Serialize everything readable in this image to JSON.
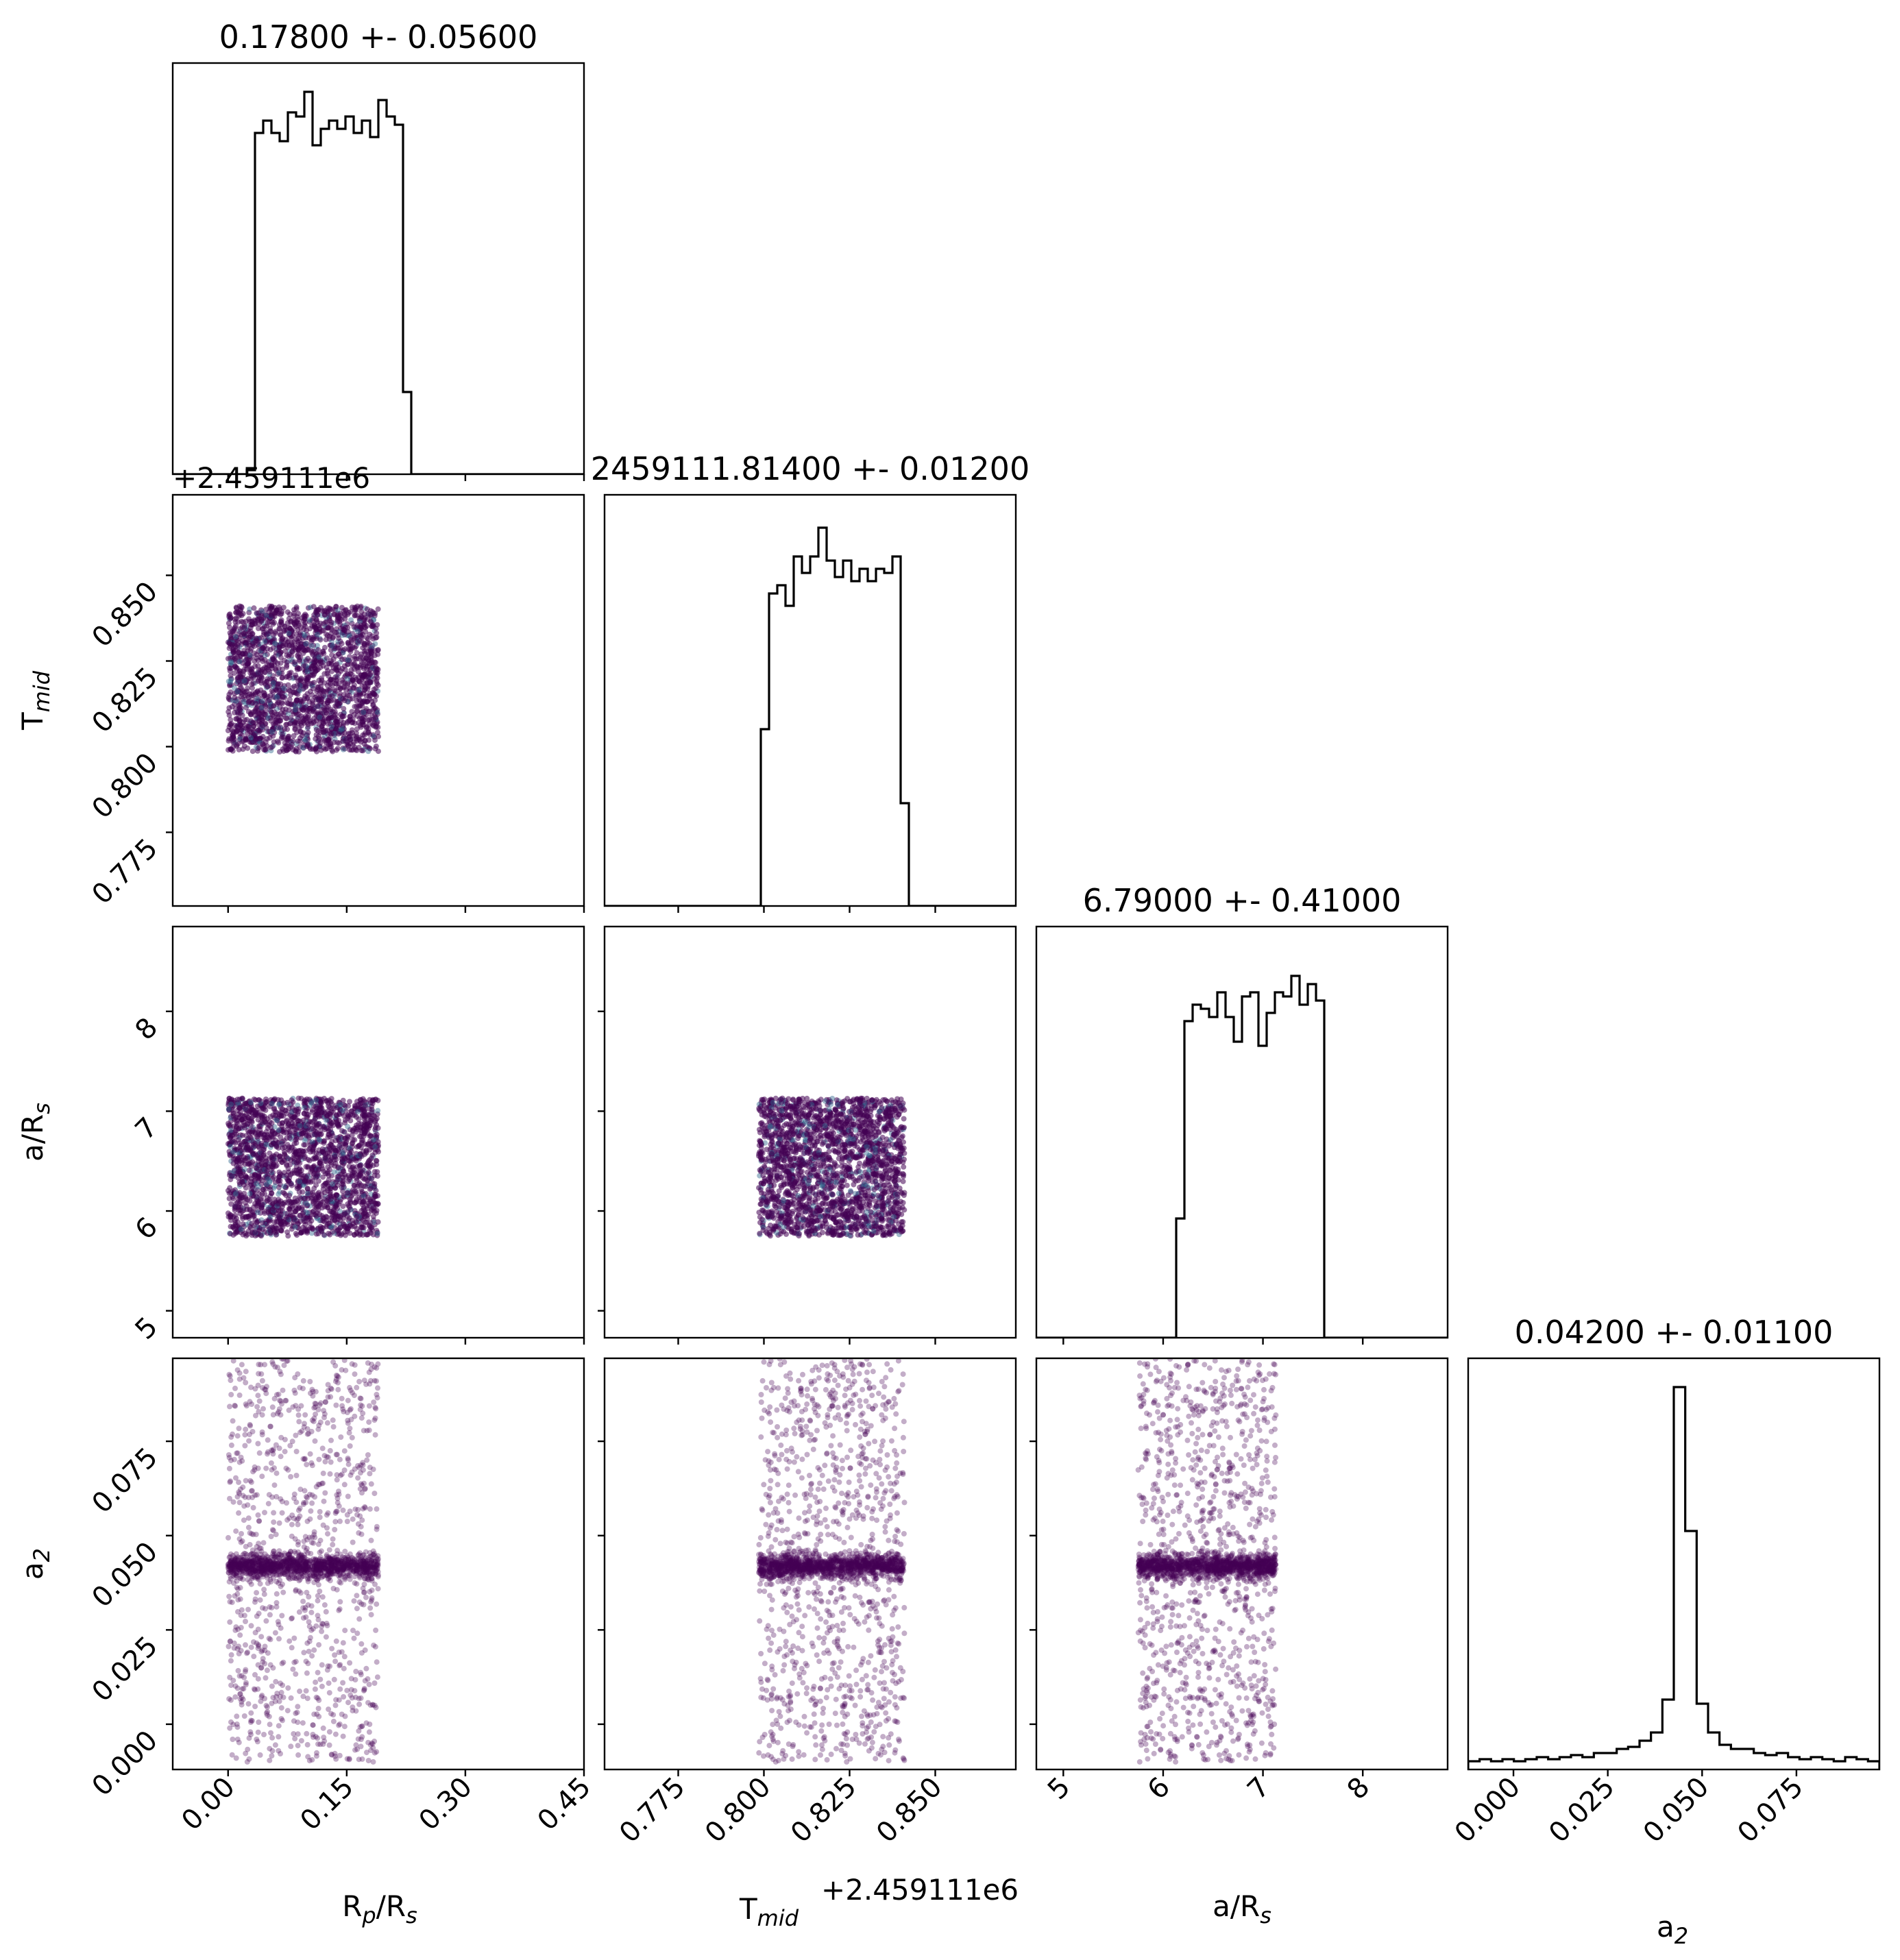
{
  "chart_data": {
    "type": "corner",
    "parameters": [
      {
        "key": "rp",
        "label": "R",
        "sub": "p",
        "label_tail": "/R",
        "sub2": "s",
        "title": "0.17800 +- 0.05600",
        "range": [
          -0.07,
          0.45
        ],
        "ticks": [
          0.0,
          0.15,
          0.3,
          0.45
        ],
        "tick_labels": [
          "0.00",
          "0.15",
          "0.30",
          "0.45"
        ],
        "uniform": [
          0.0,
          0.19
        ]
      },
      {
        "key": "tmid",
        "label": "T",
        "sub": "mid",
        "label_tail": "",
        "sub2": "",
        "title": "2459111.81400 +- 0.01200",
        "offset_label": "+2.459111e6",
        "range": [
          0.7535,
          0.8735
        ],
        "ticks": [
          0.775,
          0.8,
          0.825,
          0.85
        ],
        "tick_labels": [
          "0.775",
          "0.800",
          "0.825",
          "0.850"
        ],
        "uniform": [
          0.7985,
          0.841
        ]
      },
      {
        "key": "ars",
        "label": "a/R",
        "sub": "s",
        "label_tail": "",
        "sub2": "",
        "title": "6.79000 +- 0.41000",
        "range": [
          4.73,
          8.85
        ],
        "ticks": [
          5,
          6,
          7,
          8
        ],
        "tick_labels": [
          "5",
          "6",
          "7",
          "8"
        ],
        "uniform": [
          5.75,
          7.13
        ]
      },
      {
        "key": "a2",
        "label": "a",
        "sub": "2",
        "label_tail": "",
        "sub2": "",
        "title": "0.04200 +- 0.01100",
        "range": [
          -0.012,
          0.097
        ],
        "ticks": [
          0.0,
          0.025,
          0.05,
          0.075
        ],
        "tick_labels": [
          "0.000",
          "0.025",
          "0.050",
          "0.075"
        ],
        "peak": 0.042
      }
    ],
    "histograms": {
      "rp": [
        0,
        0,
        0,
        0,
        0,
        0,
        0,
        0,
        0,
        0.01,
        0.83,
        0.86,
        0.83,
        0.81,
        0.88,
        0.87,
        0.93,
        0.8,
        0.84,
        0.86,
        0.84,
        0.87,
        0.83,
        0.86,
        0.82,
        0.91,
        0.87,
        0.85,
        0.2,
        0,
        0,
        0,
        0,
        0,
        0,
        0,
        0,
        0,
        0,
        0,
        0,
        0,
        0,
        0,
        0,
        0,
        0,
        0,
        0,
        0
      ],
      "tmid": [
        0,
        0,
        0,
        0,
        0,
        0,
        0,
        0,
        0,
        0,
        0,
        0,
        0,
        0,
        0,
        0,
        0,
        0,
        0,
        0.43,
        0.76,
        0.78,
        0.73,
        0.85,
        0.81,
        0.85,
        0.92,
        0.84,
        0.8,
        0.84,
        0.79,
        0.82,
        0.79,
        0.82,
        0.81,
        0.85,
        0.25,
        0,
        0,
        0,
        0,
        0,
        0,
        0,
        0,
        0,
        0,
        0,
        0,
        0
      ],
      "ars": [
        0,
        0,
        0,
        0,
        0,
        0,
        0,
        0,
        0,
        0,
        0,
        0,
        0,
        0,
        0,
        0,
        0,
        0.29,
        0.77,
        0.81,
        0.8,
        0.78,
        0.84,
        0.78,
        0.72,
        0.83,
        0.84,
        0.71,
        0.79,
        0.84,
        0.83,
        0.88,
        0.81,
        0.86,
        0.82,
        0,
        0,
        0,
        0,
        0,
        0,
        0,
        0,
        0,
        0,
        0,
        0,
        0,
        0,
        0
      ],
      "a2": [
        0.02,
        0.025,
        0.02,
        0.025,
        0.02,
        0.025,
        0.03,
        0.025,
        0.03,
        0.035,
        0.03,
        0.04,
        0.04,
        0.05,
        0.055,
        0.07,
        0.09,
        0.17,
        0.93,
        0.58,
        0.16,
        0.09,
        0.06,
        0.05,
        0.05,
        0.04,
        0.035,
        0.04,
        0.03,
        0.025,
        0.03,
        0.025,
        0.02,
        0.03,
        0.025,
        0.02
      ]
    }
  },
  "colors": {
    "hist_line": "#000000",
    "frame": "#000000",
    "points": "#440154",
    "points_alt": [
      "#31688e",
      "#35b779",
      "#fde725"
    ]
  }
}
